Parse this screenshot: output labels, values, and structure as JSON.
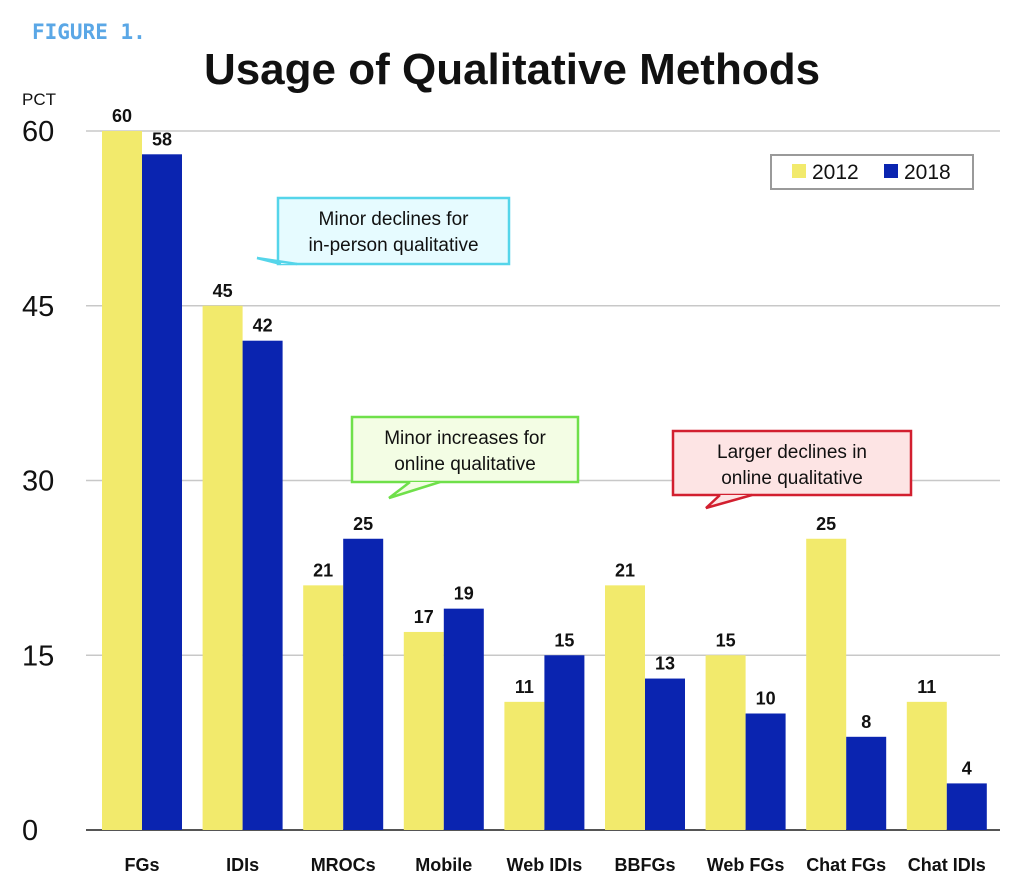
{
  "figure_label": "FIGURE 1.",
  "chart_data": {
    "type": "bar",
    "title": "Usage of Qualitative Methods",
    "ylabel": "PCT",
    "xlabel": "",
    "ylim": [
      0,
      60
    ],
    "yticks": [
      0,
      15,
      30,
      45,
      60
    ],
    "grid": true,
    "legend_position": "top-right",
    "categories": [
      "FGs",
      "IDIs",
      "MROCs",
      "Mobile",
      "Web IDIs",
      "BBFGs",
      "Web FGs",
      "Chat FGs",
      "Chat IDIs"
    ],
    "series": [
      {
        "name": "2012",
        "color": "#f2ea6c",
        "values": [
          60,
          45,
          21,
          17,
          11,
          21,
          15,
          25,
          11
        ]
      },
      {
        "name": "2018",
        "color": "#0a24b0",
        "values": [
          58,
          42,
          25,
          19,
          15,
          13,
          10,
          8,
          4
        ]
      }
    ],
    "annotations": [
      {
        "lines": [
          "Minor declines for",
          "in-person qualitative"
        ],
        "fill": "#e6fbff",
        "stroke": "#55d5ea",
        "tail": "bottom-left"
      },
      {
        "lines": [
          "Minor increases for",
          "online qualitative"
        ],
        "fill": "#f3fde4",
        "stroke": "#6fe04a",
        "tail": "bottom-center"
      },
      {
        "lines": [
          "Larger declines in",
          "online qualitative"
        ],
        "fill": "#fde4e4",
        "stroke": "#d21f2f",
        "tail": "bottom-center"
      }
    ]
  }
}
